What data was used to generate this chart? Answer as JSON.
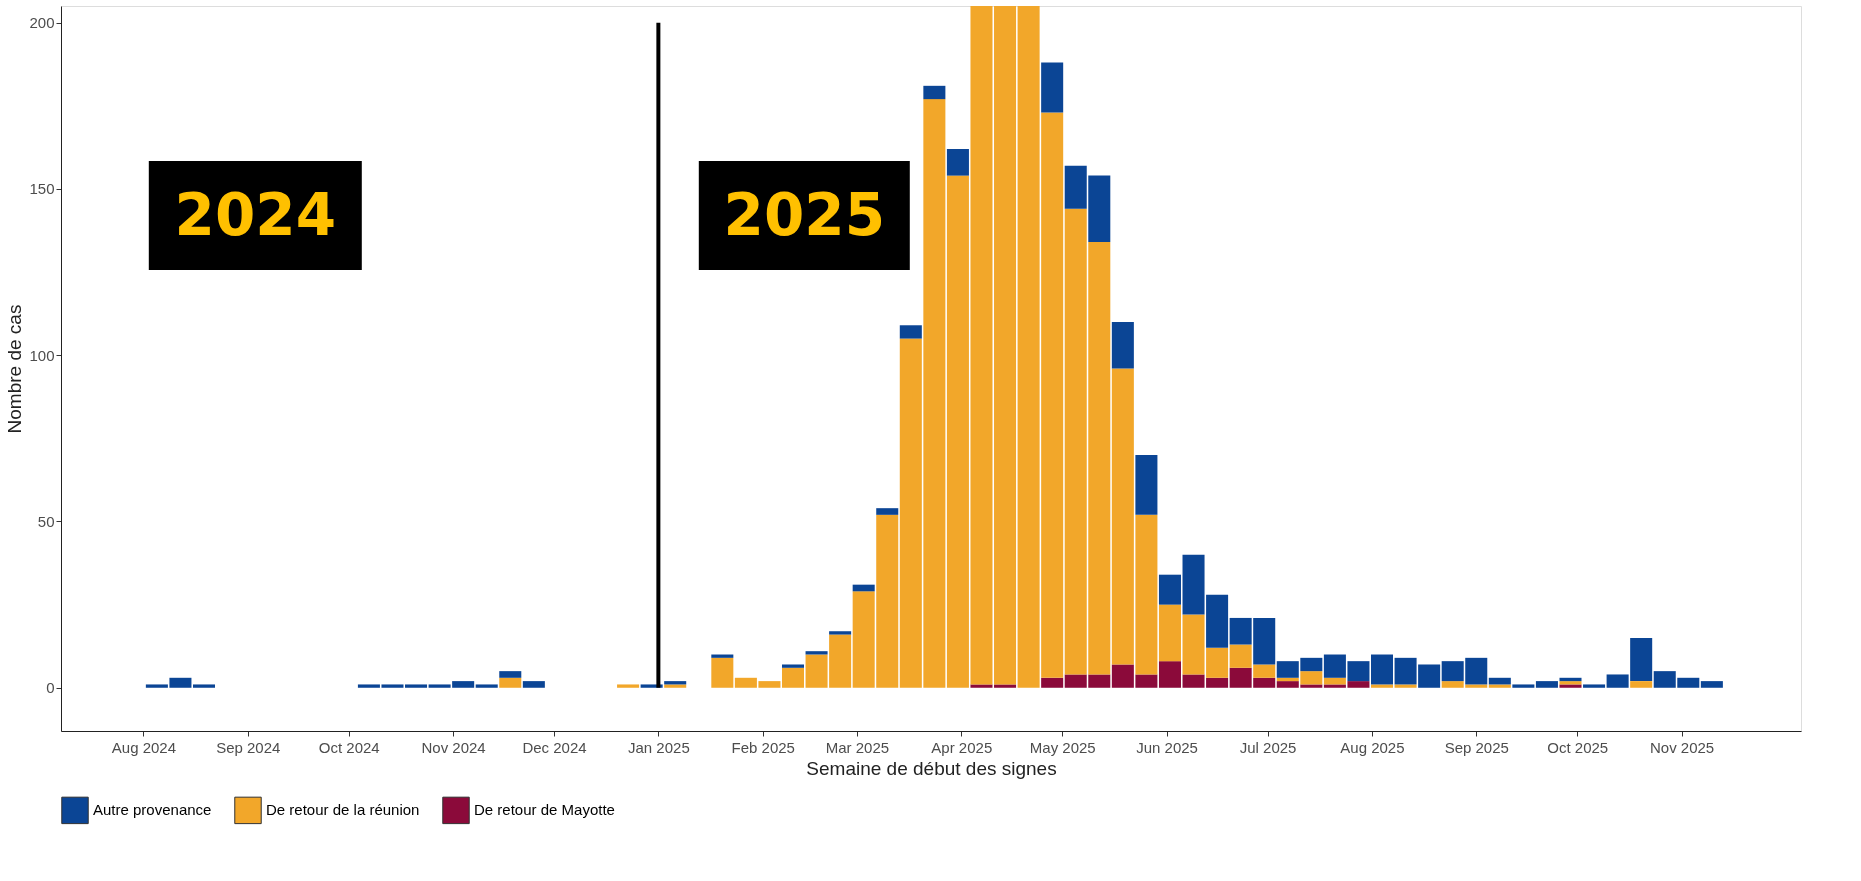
{
  "chart_data": {
    "type": "bar",
    "stacked": true,
    "xlabel": "Semaine de début des signes",
    "ylabel": "Nombre de cas",
    "x": [
      "2024-08-05",
      "2024-08-12",
      "2024-08-19",
      "2024-10-07",
      "2024-10-14",
      "2024-10-21",
      "2024-10-28",
      "2024-11-04",
      "2024-11-11",
      "2024-11-18",
      "2024-11-25",
      "2024-12-23",
      "2024-12-30",
      "2025-01-06",
      "2025-01-20",
      "2025-01-27",
      "2025-02-03",
      "2025-02-10",
      "2025-02-17",
      "2025-02-24",
      "2025-03-03",
      "2025-03-10",
      "2025-03-17",
      "2025-03-24",
      "2025-03-31",
      "2025-04-07",
      "2025-04-14",
      "2025-04-21",
      "2025-04-28",
      "2025-05-05",
      "2025-05-12",
      "2025-05-19",
      "2025-05-26",
      "2025-06-02",
      "2025-06-09",
      "2025-06-16",
      "2025-06-23",
      "2025-06-30",
      "2025-07-07",
      "2025-07-14",
      "2025-07-21",
      "2025-07-28",
      "2025-08-04",
      "2025-08-11",
      "2025-08-18",
      "2025-08-25",
      "2025-09-01",
      "2025-09-08",
      "2025-09-15",
      "2025-09-22",
      "2025-09-29",
      "2025-10-06",
      "2025-10-13",
      "2025-10-20",
      "2025-10-27",
      "2025-11-03",
      "2025-11-10"
    ],
    "series": [
      {
        "name": "De retour de Mayotte",
        "color": "#8b0a3a",
        "values": [
          0,
          0,
          0,
          0,
          0,
          0,
          0,
          0,
          0,
          0,
          0,
          0,
          0,
          0,
          0,
          0,
          0,
          0,
          0,
          0,
          0,
          0,
          0,
          0,
          0,
          1,
          1,
          0,
          3,
          4,
          4,
          7,
          4,
          8,
          4,
          3,
          6,
          3,
          2,
          1,
          1,
          2,
          0,
          0,
          0,
          0,
          0,
          0,
          0,
          0,
          1,
          0,
          0,
          0,
          0,
          0,
          0
        ]
      },
      {
        "name": "De retour de la réunion",
        "color": "#f2a72a",
        "values": [
          0,
          0,
          0,
          0,
          0,
          0,
          0,
          0,
          0,
          3,
          0,
          1,
          0,
          1,
          9,
          3,
          2,
          6,
          10,
          16,
          29,
          52,
          105,
          177,
          154,
          204,
          204,
          205,
          170,
          140,
          130,
          89,
          48,
          17,
          18,
          9,
          7,
          4,
          1,
          4,
          2,
          0,
          1,
          1,
          0,
          2,
          1,
          1,
          0,
          0,
          1,
          0,
          0,
          2,
          0,
          0,
          0
        ]
      },
      {
        "name": "Autre provenance",
        "color": "#0b4595",
        "values": [
          1,
          3,
          1,
          1,
          1,
          1,
          1,
          2,
          1,
          2,
          2,
          0,
          1,
          1,
          1,
          0,
          0,
          1,
          1,
          1,
          2,
          2,
          4,
          4,
          8,
          null,
          null,
          null,
          15,
          13,
          20,
          14,
          18,
          9,
          18,
          16,
          8,
          14,
          5,
          4,
          7,
          6,
          9,
          8,
          7,
          6,
          8,
          2,
          1,
          2,
          1,
          1,
          4,
          13,
          5,
          3,
          2
        ]
      }
    ],
    "xlim": [
      "2024-07-09",
      "2025-12-05"
    ],
    "xticks": [
      {
        "value": "2024-08-01",
        "label": "Aug 2024"
      },
      {
        "value": "2024-09-01",
        "label": "Sep 2024"
      },
      {
        "value": "2024-10-01",
        "label": "Oct 2024"
      },
      {
        "value": "2024-11-01",
        "label": "Nov 2024"
      },
      {
        "value": "2024-12-01",
        "label": "Dec 2024"
      },
      {
        "value": "2025-01-01",
        "label": "Jan 2025"
      },
      {
        "value": "2025-02-01",
        "label": "Feb 2025"
      },
      {
        "value": "2025-03-01",
        "label": "Mar 2025"
      },
      {
        "value": "2025-04-01",
        "label": "Apr 2025"
      },
      {
        "value": "2025-05-01",
        "label": "May 2025"
      },
      {
        "value": "2025-06-01",
        "label": "Jun 2025"
      },
      {
        "value": "2025-07-01",
        "label": "Jul 2025"
      },
      {
        "value": "2025-08-01",
        "label": "Aug 2025"
      },
      {
        "value": "2025-09-01",
        "label": "Sep 2025"
      },
      {
        "value": "2025-10-01",
        "label": "Oct 2025"
      },
      {
        "value": "2025-11-01",
        "label": "Nov 2025"
      }
    ],
    "ylim": [
      -13,
      205
    ],
    "yticks": [
      0,
      50,
      100,
      150,
      200
    ],
    "ref_lines": [
      {
        "axis": "x",
        "value": "2025-01-01",
        "color": "#000000"
      }
    ],
    "annotations": [
      "2024",
      "2025"
    ],
    "grid": false,
    "legend": "bottom"
  }
}
